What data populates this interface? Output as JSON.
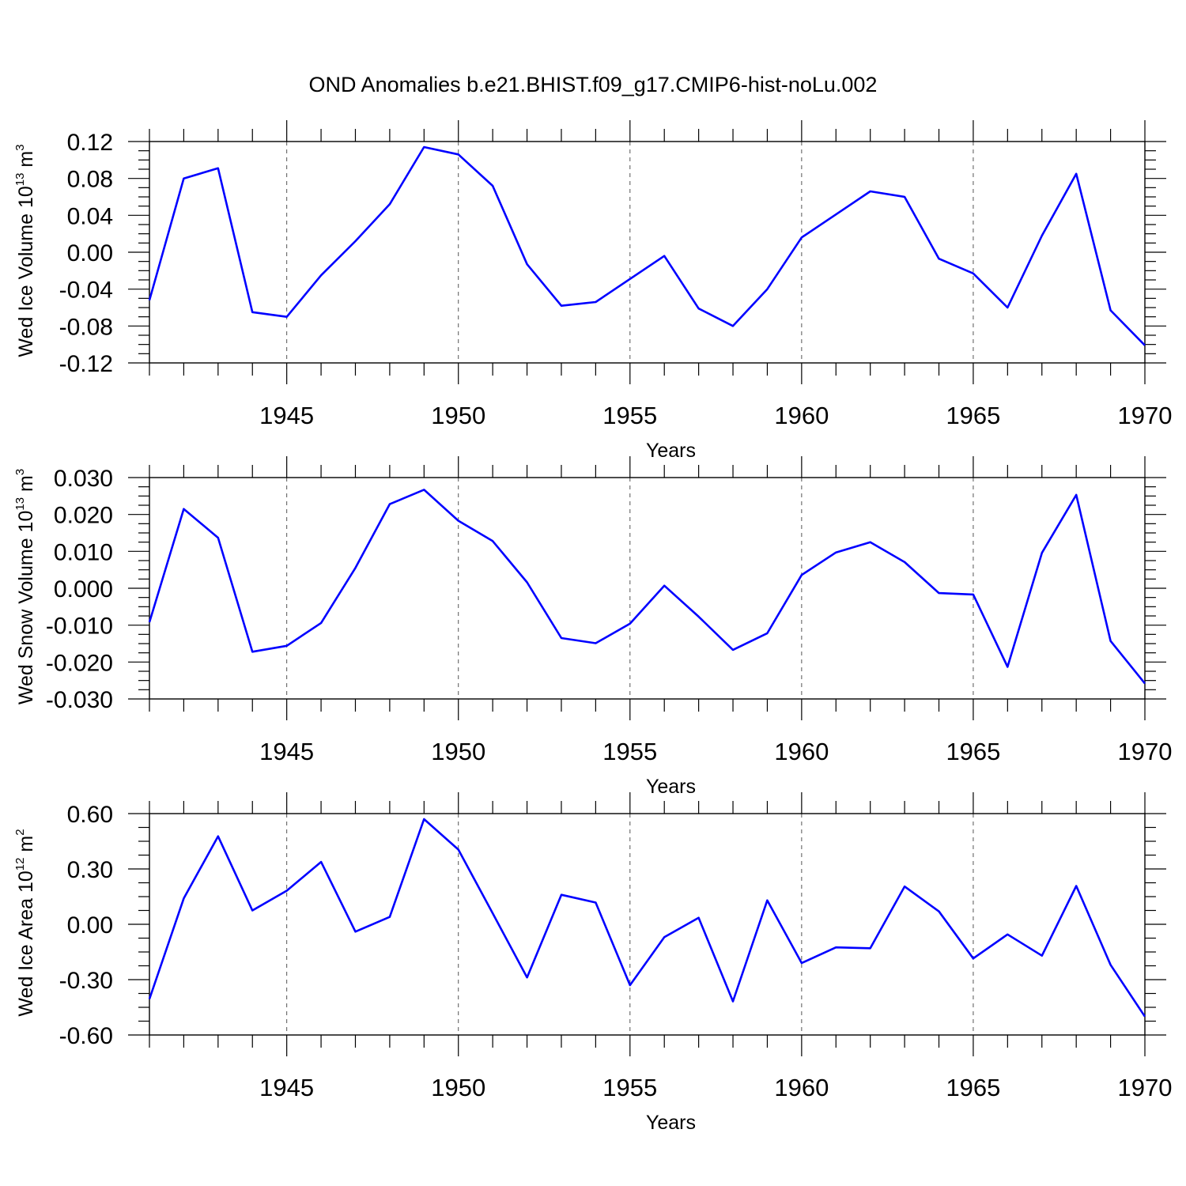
{
  "title": "OND Anomalies b.e21.BHIST.f09_g17.CMIP6-hist-noLu.002",
  "chart_data": [
    {
      "type": "line",
      "xlabel": "Years",
      "ylabel": {
        "main": "Wed Ice Volume 10",
        "exp": "13",
        "unit": " m",
        "unit_exp": "3"
      },
      "xlim": [
        1941,
        1970
      ],
      "ylim": [
        -0.12,
        0.12
      ],
      "y_ticks": [
        "0.12",
        "0.08",
        "0.04",
        "0.00",
        "-0.04",
        "-0.08",
        "-0.12"
      ],
      "y_tick_values": [
        0.12,
        0.08,
        0.04,
        0.0,
        -0.04,
        -0.08,
        -0.12
      ],
      "x_ticks": [
        "1945",
        "1950",
        "1955",
        "1960",
        "1965",
        "1970"
      ],
      "x_tick_values": [
        1945,
        1950,
        1955,
        1960,
        1965,
        1970
      ],
      "vertical_grid": true,
      "line_color": "#0000ff",
      "x": [
        1941,
        1942,
        1943,
        1944,
        1945,
        1946,
        1947,
        1948,
        1949,
        1950,
        1951,
        1952,
        1953,
        1954,
        1955,
        1956,
        1957,
        1958,
        1959,
        1960,
        1961,
        1962,
        1963,
        1964,
        1965,
        1966,
        1967,
        1968,
        1969,
        1970
      ],
      "values": [
        -0.052,
        0.08,
        0.091,
        -0.065,
        -0.07,
        -0.025,
        0.012,
        0.052,
        0.114,
        0.106,
        0.072,
        -0.013,
        -0.058,
        -0.054,
        -0.029,
        -0.004,
        -0.061,
        -0.08,
        -0.04,
        0.016,
        0.041,
        0.066,
        0.06,
        -0.007,
        -0.023,
        -0.06,
        0.018,
        0.085,
        -0.063,
        -0.101
      ]
    },
    {
      "type": "line",
      "xlabel": "Years",
      "ylabel": {
        "main": "Wed Snow Volume 10",
        "exp": "13",
        "unit": " m",
        "unit_exp": "3"
      },
      "xlim": [
        1941,
        1970
      ],
      "ylim": [
        -0.03,
        0.03
      ],
      "y_ticks": [
        "0.030",
        "0.020",
        "0.010",
        "0.000",
        "-0.010",
        "-0.020",
        "-0.030"
      ],
      "y_tick_values": [
        0.03,
        0.02,
        0.01,
        0.0,
        -0.01,
        -0.02,
        -0.03
      ],
      "x_ticks": [
        "1945",
        "1950",
        "1955",
        "1960",
        "1965",
        "1970"
      ],
      "x_tick_values": [
        1945,
        1950,
        1955,
        1960,
        1965,
        1970
      ],
      "vertical_grid": true,
      "line_color": "#0000ff",
      "x": [
        1941,
        1942,
        1943,
        1944,
        1945,
        1946,
        1947,
        1948,
        1949,
        1950,
        1951,
        1952,
        1953,
        1954,
        1955,
        1956,
        1957,
        1958,
        1959,
        1960,
        1961,
        1962,
        1963,
        1964,
        1965,
        1966,
        1967,
        1968,
        1969,
        1970
      ],
      "values": [
        -0.0092,
        0.0215,
        0.0137,
        -0.0172,
        -0.0156,
        -0.0094,
        0.0055,
        0.0228,
        0.0267,
        0.0183,
        0.0128,
        0.0016,
        -0.0135,
        -0.0149,
        -0.0096,
        0.0007,
        -0.0077,
        -0.0167,
        -0.0122,
        0.0036,
        0.0097,
        0.0125,
        0.0071,
        -0.0013,
        -0.0017,
        -0.0213,
        0.0096,
        0.0253,
        -0.0143,
        -0.0258
      ]
    },
    {
      "type": "line",
      "xlabel": "Years",
      "ylabel": {
        "main": "Wed Ice Area 10",
        "exp": "12",
        "unit": " m",
        "unit_exp": "2"
      },
      "xlim": [
        1941,
        1970
      ],
      "ylim": [
        -0.6,
        0.6
      ],
      "y_ticks": [
        "0.60",
        "0.30",
        "0.00",
        "-0.30",
        "-0.60"
      ],
      "y_tick_values": [
        0.6,
        0.3,
        0.0,
        -0.3,
        -0.6
      ],
      "x_ticks": [
        "1945",
        "1950",
        "1955",
        "1960",
        "1965",
        "1970"
      ],
      "x_tick_values": [
        1945,
        1950,
        1955,
        1960,
        1965,
        1970
      ],
      "vertical_grid": true,
      "line_color": "#0000ff",
      "x": [
        1941,
        1942,
        1943,
        1944,
        1945,
        1946,
        1947,
        1948,
        1949,
        1950,
        1951,
        1952,
        1953,
        1954,
        1955,
        1956,
        1957,
        1958,
        1959,
        1960,
        1961,
        1962,
        1963,
        1964,
        1965,
        1966,
        1967,
        1968,
        1969,
        1970
      ],
      "values": [
        -0.405,
        0.14,
        0.477,
        0.075,
        0.182,
        0.338,
        -0.04,
        0.04,
        0.57,
        0.405,
        0.06,
        -0.288,
        0.16,
        0.118,
        -0.33,
        -0.07,
        0.035,
        -0.418,
        0.13,
        -0.21,
        -0.125,
        -0.13,
        0.205,
        0.07,
        -0.185,
        -0.055,
        -0.17,
        0.208,
        -0.22,
        -0.5
      ]
    }
  ]
}
